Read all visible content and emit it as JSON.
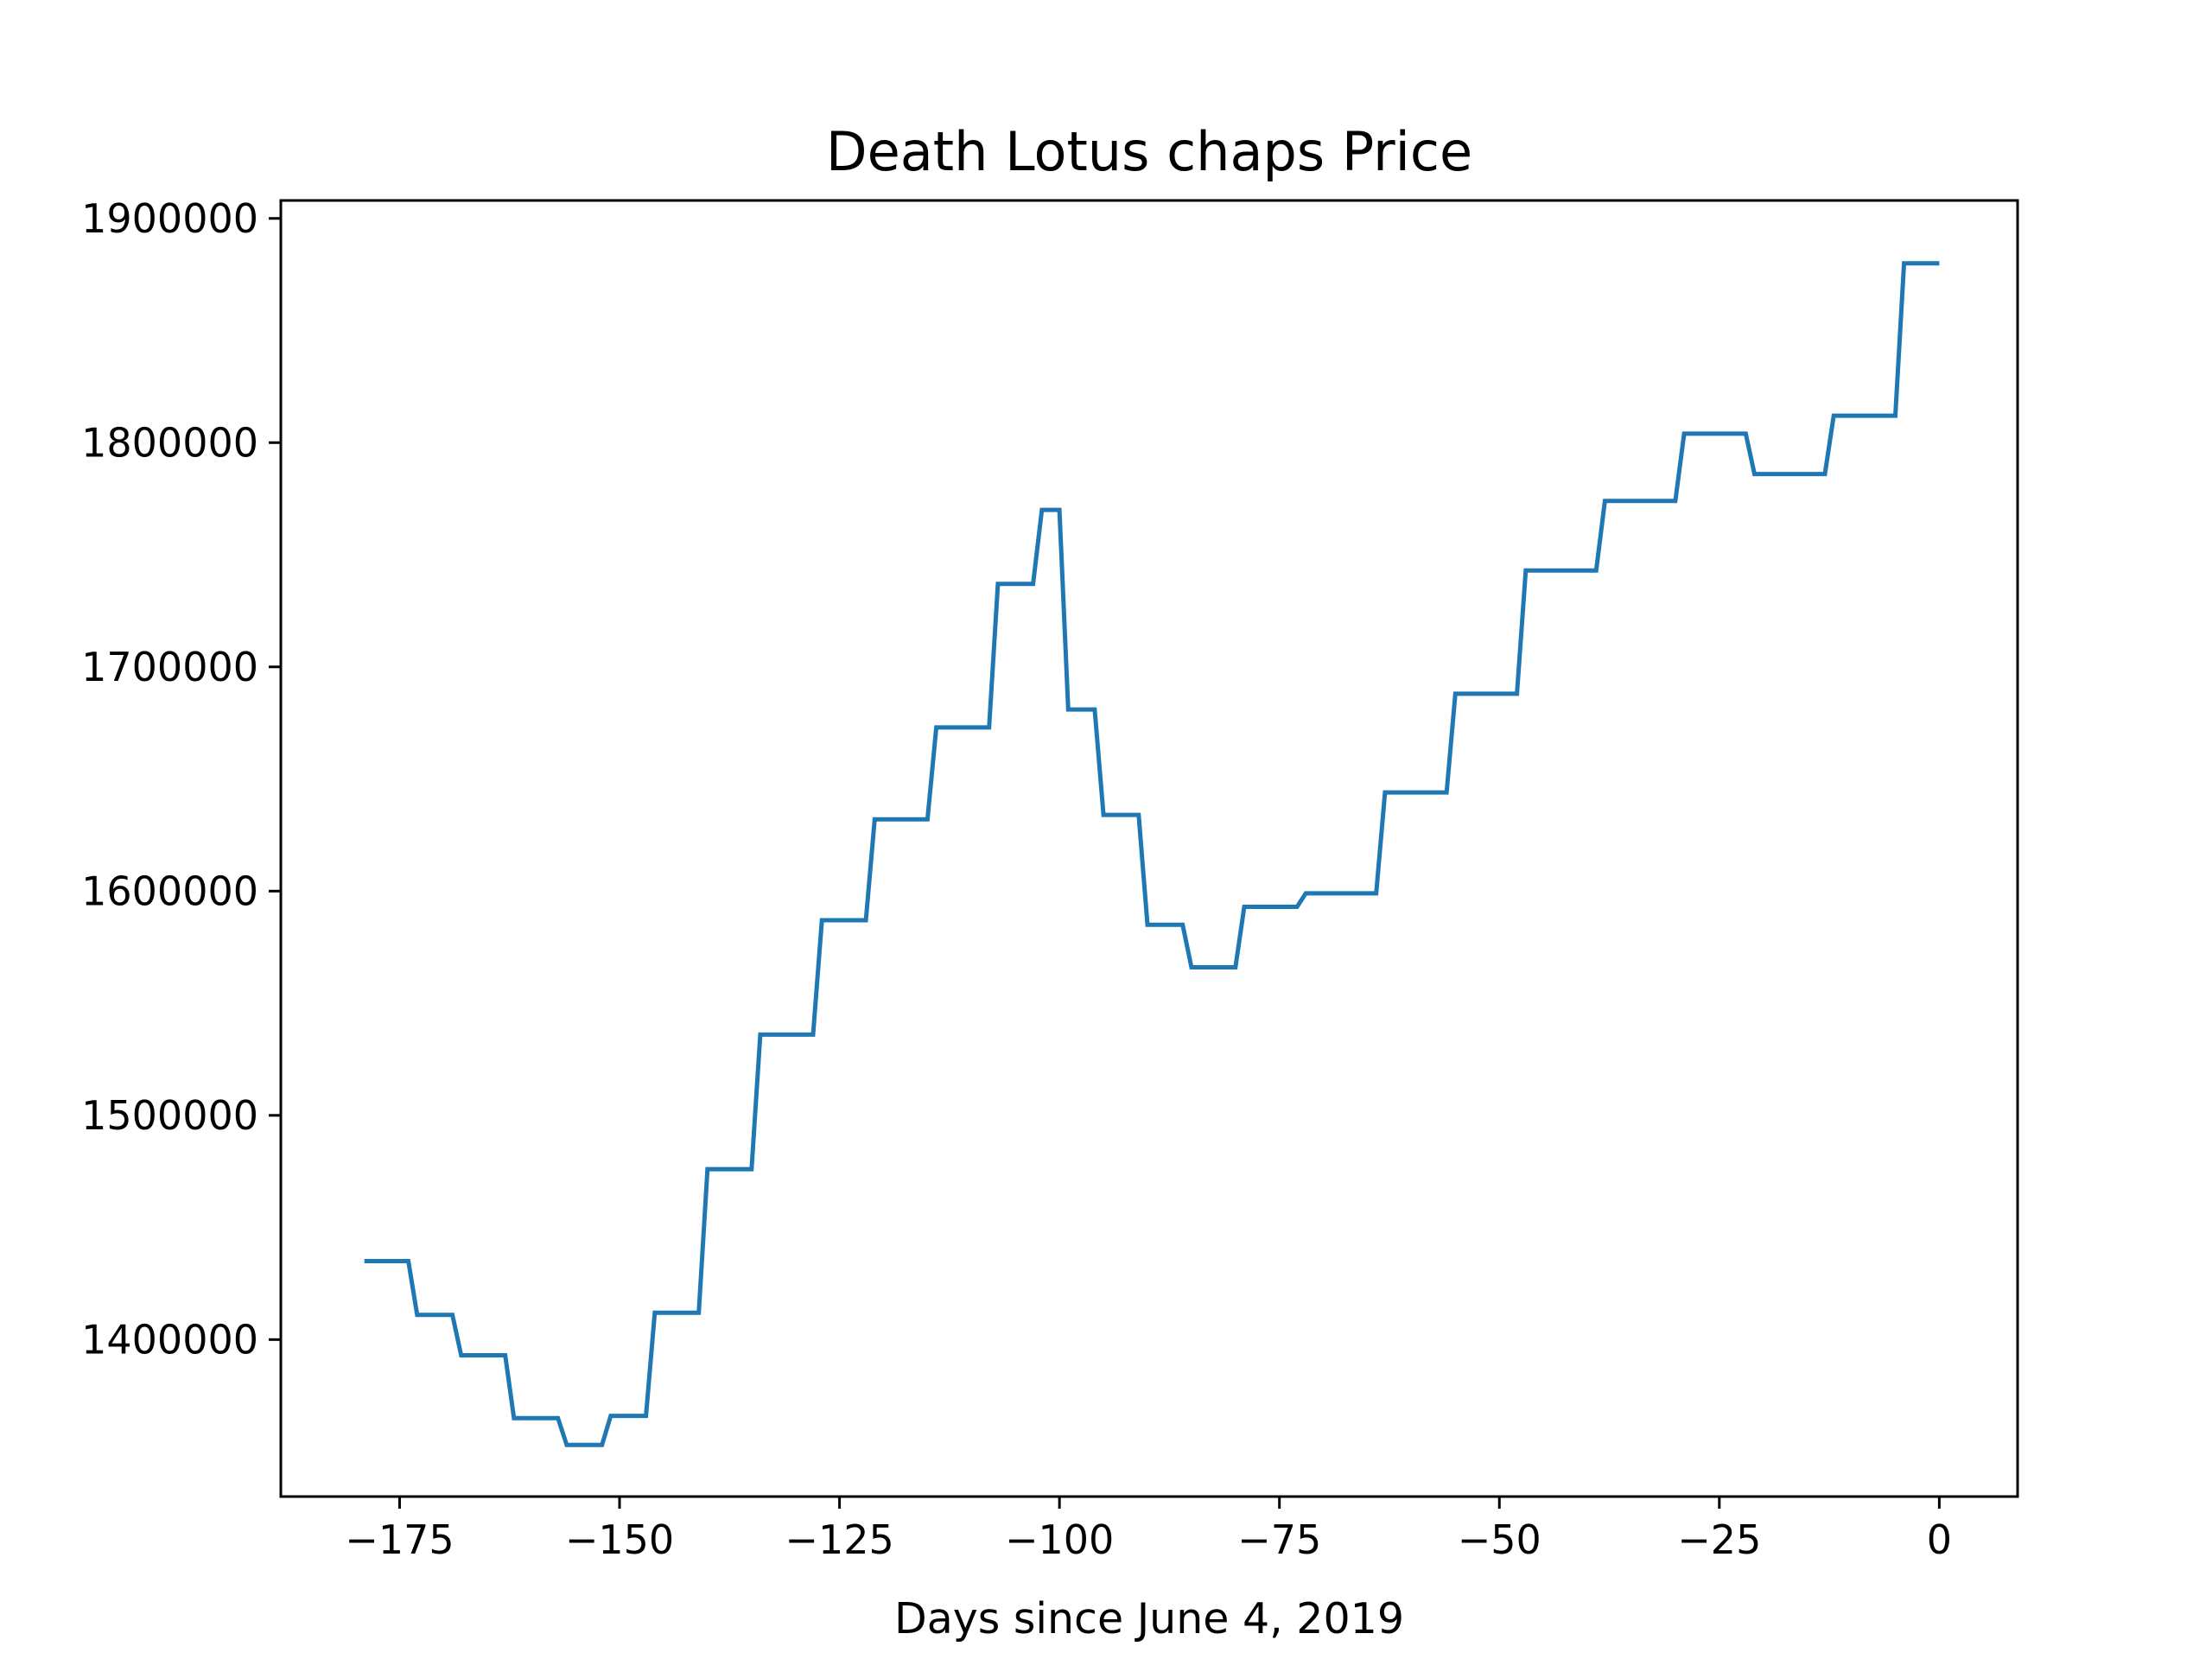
{
  "chart_data": {
    "type": "line",
    "title": "Death Lotus chaps Price",
    "xlabel": "Days since June 4, 2019",
    "ylabel": "",
    "xlim": [
      -188.5,
      8.9
    ],
    "ylim": [
      1330000,
      1908000
    ],
    "xticks": [
      -175,
      -150,
      -125,
      -100,
      -75,
      -50,
      -25,
      0
    ],
    "xtick_labels": [
      "−175",
      "−150",
      "−125",
      "−100",
      "−75",
      "−50",
      "−25",
      "0"
    ],
    "yticks": [
      1400000,
      1500000,
      1600000,
      1700000,
      1800000,
      1900000
    ],
    "ytick_labels": [
      "1400000",
      "1500000",
      "1600000",
      "1700000",
      "1800000",
      "1900000"
    ],
    "grid": false,
    "series": [
      {
        "color": "#1f77b4",
        "x": [
          -179,
          -174,
          -173,
          -169,
          -168,
          -163,
          -162,
          -157,
          -156,
          -152,
          -151,
          -147,
          -146,
          -141,
          -140,
          -135,
          -134,
          -128,
          -127,
          -122,
          -121,
          -115,
          -114,
          -108,
          -107,
          -103,
          -102,
          -100,
          -99,
          -96,
          -95,
          -91,
          -90,
          -86,
          -85,
          -80,
          -79,
          -74,
          -73,
          -72,
          -71,
          -64,
          -63,
          -56,
          -55,
          -48,
          -47,
          -39,
          -38,
          -30,
          -29,
          -22,
          -21,
          -13,
          -12,
          -5,
          -4,
          0
        ],
        "y": [
          1435000,
          1435000,
          1411000,
          1411000,
          1393000,
          1393000,
          1365000,
          1365000,
          1353000,
          1353000,
          1366000,
          1366000,
          1412000,
          1412000,
          1476000,
          1476000,
          1536000,
          1536000,
          1587000,
          1587000,
          1632000,
          1632000,
          1673000,
          1673000,
          1737000,
          1737000,
          1770000,
          1770000,
          1681000,
          1681000,
          1634000,
          1634000,
          1585000,
          1585000,
          1566000,
          1566000,
          1593000,
          1593000,
          1593000,
          1599000,
          1599000,
          1599000,
          1644000,
          1644000,
          1688000,
          1688000,
          1743000,
          1743000,
          1774000,
          1774000,
          1804000,
          1804000,
          1786000,
          1786000,
          1812000,
          1812000,
          1880000,
          1880000
        ]
      }
    ]
  }
}
